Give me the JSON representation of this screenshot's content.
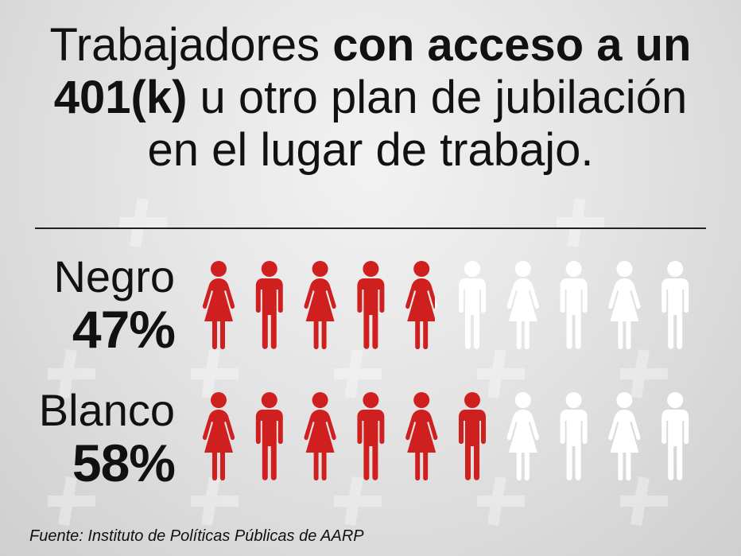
{
  "title": {
    "part1": "Trabajadores ",
    "bold1": "con acceso a un",
    "bold2": "401(k)",
    "part2": " u otro plan de jubilación",
    "part3": "en el lugar de trabajo."
  },
  "colors": {
    "filled": "#cf1f1f",
    "empty": "#ffffff",
    "text": "#111111"
  },
  "icons": {
    "female": "woman-icon",
    "male": "man-icon"
  },
  "chart_data": {
    "type": "pictograph",
    "unit": "%",
    "icons_per_row": 10,
    "categories": [
      "Negro",
      "Blanco"
    ],
    "series": [
      {
        "label": "Negro",
        "value": 47,
        "value_label": "47%"
      },
      {
        "label": "Blanco",
        "value": 58,
        "value_label": "58%"
      }
    ],
    "icon_pattern": [
      "woman",
      "man",
      "woman",
      "man",
      "woman",
      "man",
      "woman",
      "man",
      "woman",
      "man"
    ],
    "ylim": [
      0,
      100
    ]
  },
  "source": "Fuente: Instituto de Políticas Públicas de AARP"
}
